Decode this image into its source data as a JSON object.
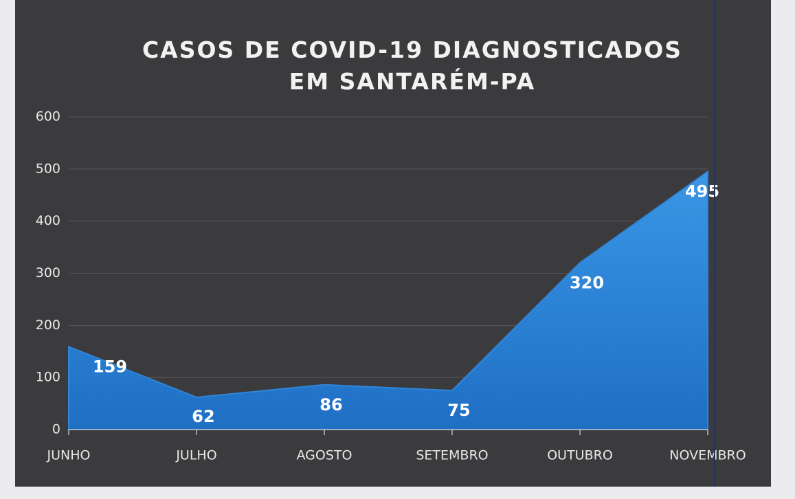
{
  "chart_data": {
    "type": "area",
    "title": "CASOS DE COVID-19 DIAGNOSTICADOS EM SANTARÉM-PA",
    "categories": [
      "JUNHO",
      "JULHO",
      "AGOSTO",
      "SETEMBRO",
      "OUTUBRO",
      "NOVEMBRO"
    ],
    "values": [
      159,
      62,
      86,
      75,
      320,
      495
    ],
    "color": "#2f86d8",
    "ylim": [
      0,
      600
    ],
    "yticks": [
      0,
      100,
      200,
      300,
      400,
      500,
      600
    ],
    "grid": true
  }
}
